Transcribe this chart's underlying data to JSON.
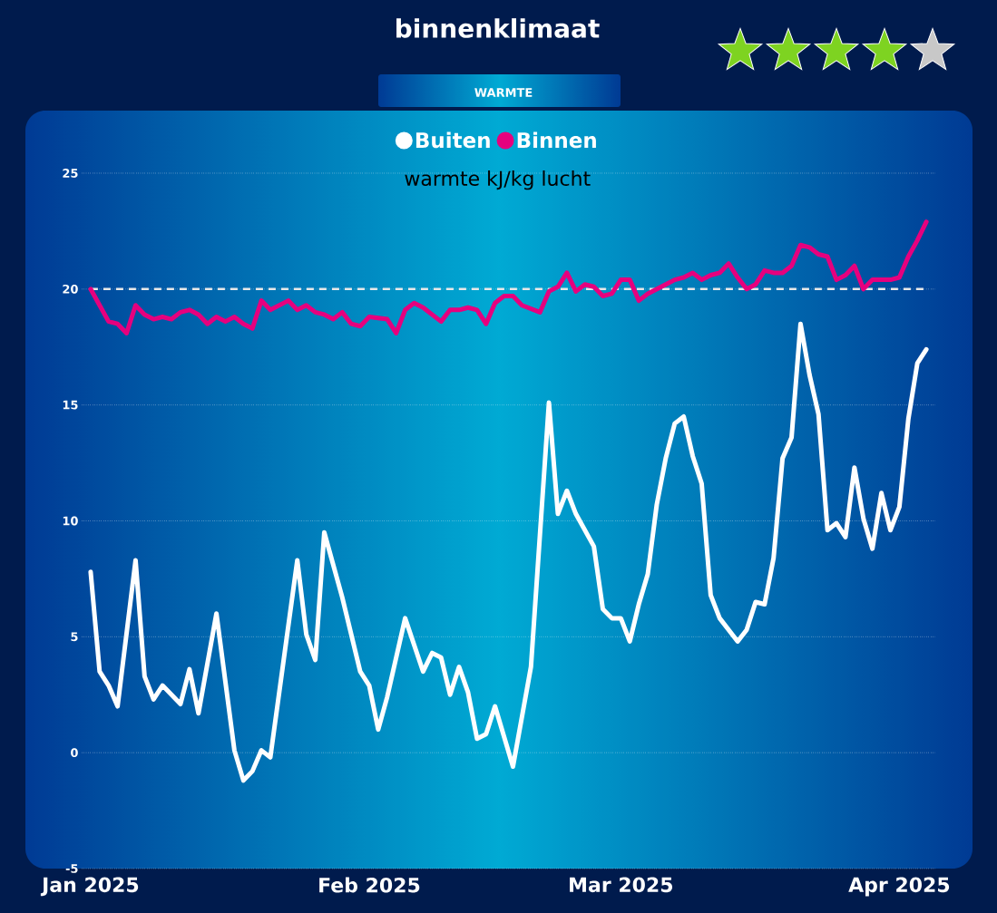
{
  "chart_data": {
    "type": "line",
    "title": "binnenklimaat",
    "subtitle": "WARMTE",
    "ylabel": "warmte kJ/kg lucht",
    "xlim": [
      "2024-12-31",
      "2025-04-05"
    ],
    "xticks": [
      {
        "value": "2025-01-01",
        "label": "Jan 2025"
      },
      {
        "value": "2025-02-01",
        "label": "Feb 2025"
      },
      {
        "value": "2025-03-01",
        "label": "Mar 2025"
      },
      {
        "value": "2025-04-01",
        "label": "Apr 2025"
      }
    ],
    "ylim": [
      -5,
      25
    ],
    "yticks": [
      -5,
      0,
      5,
      10,
      15,
      20,
      25
    ],
    "grid": "y",
    "legend": "top",
    "marker": "none",
    "line_style": "solid",
    "ref_lines": [
      {
        "axis": "y",
        "value": 20,
        "color": "#e8e8e8",
        "line_style": "dashed"
      }
    ],
    "series": [
      {
        "name": "Buiten",
        "color": "#ffffff",
        "x": [
          "2025-01-01",
          "2025-01-02",
          "2025-01-03",
          "2025-01-04",
          "2025-01-06",
          "2025-01-07",
          "2025-01-08",
          "2025-01-09",
          "2025-01-11",
          "2025-01-12",
          "2025-01-13",
          "2025-01-15",
          "2025-01-17",
          "2025-01-18",
          "2025-01-19",
          "2025-01-20",
          "2025-01-21",
          "2025-01-24",
          "2025-01-25",
          "2025-01-26",
          "2025-01-27",
          "2025-01-29",
          "2025-01-31",
          "2025-02-01",
          "2025-02-02",
          "2025-02-03",
          "2025-02-05",
          "2025-02-07",
          "2025-02-08",
          "2025-02-09",
          "2025-02-10",
          "2025-02-11",
          "2025-02-12",
          "2025-02-13",
          "2025-02-14",
          "2025-02-15",
          "2025-02-17",
          "2025-02-19",
          "2025-02-21",
          "2025-02-22",
          "2025-02-23",
          "2025-02-24",
          "2025-02-26",
          "2025-02-27",
          "2025-02-28",
          "2025-03-01",
          "2025-03-02",
          "2025-03-03",
          "2025-03-04",
          "2025-03-05",
          "2025-03-06",
          "2025-03-07",
          "2025-03-08",
          "2025-03-09",
          "2025-03-10",
          "2025-03-11",
          "2025-03-12",
          "2025-03-14",
          "2025-03-15",
          "2025-03-16",
          "2025-03-17",
          "2025-03-18",
          "2025-03-19",
          "2025-03-20",
          "2025-03-21",
          "2025-03-22",
          "2025-03-23",
          "2025-03-24",
          "2025-03-25",
          "2025-03-26",
          "2025-03-27",
          "2025-03-28",
          "2025-03-29",
          "2025-03-30",
          "2025-03-31",
          "2025-04-01",
          "2025-04-02",
          "2025-04-03",
          "2025-04-04"
        ],
        "values": [
          7.8,
          3.5,
          2.9,
          2.0,
          8.3,
          3.3,
          2.3,
          2.9,
          2.1,
          3.6,
          1.7,
          6.0,
          0.1,
          -1.2,
          -0.8,
          0.1,
          -0.2,
          8.3,
          5.1,
          4.0,
          9.5,
          6.7,
          3.5,
          2.9,
          1.0,
          2.4,
          5.8,
          3.5,
          4.3,
          4.1,
          2.5,
          3.7,
          2.6,
          0.6,
          0.8,
          2.0,
          -0.6,
          3.7,
          15.1,
          10.3,
          11.3,
          10.3,
          8.9,
          6.2,
          5.8,
          5.8,
          4.8,
          6.4,
          7.7,
          10.7,
          12.7,
          14.2,
          14.5,
          12.8,
          11.6,
          6.8,
          5.8,
          4.8,
          5.3,
          6.5,
          6.4,
          8.4,
          12.7,
          13.6,
          18.5,
          16.3,
          14.6,
          9.6,
          9.9,
          9.3,
          12.3,
          10.1,
          8.8,
          11.2,
          9.6,
          10.6,
          14.4,
          16.8,
          17.4
        ]
      },
      {
        "name": "Binnen",
        "color": "#e6007e",
        "x": [
          "2025-01-01",
          "2025-01-02",
          "2025-01-03",
          "2025-01-04",
          "2025-01-05",
          "2025-01-06",
          "2025-01-07",
          "2025-01-08",
          "2025-01-09",
          "2025-01-10",
          "2025-01-11",
          "2025-01-12",
          "2025-01-13",
          "2025-01-14",
          "2025-01-15",
          "2025-01-16",
          "2025-01-17",
          "2025-01-18",
          "2025-01-19",
          "2025-01-20",
          "2025-01-21",
          "2025-01-23",
          "2025-01-24",
          "2025-01-25",
          "2025-01-26",
          "2025-01-27",
          "2025-01-28",
          "2025-01-29",
          "2025-01-30",
          "2025-01-31",
          "2025-02-01",
          "2025-02-03",
          "2025-02-04",
          "2025-02-05",
          "2025-02-06",
          "2025-02-07",
          "2025-02-09",
          "2025-02-10",
          "2025-02-11",
          "2025-02-12",
          "2025-02-13",
          "2025-02-14",
          "2025-02-15",
          "2025-02-16",
          "2025-02-17",
          "2025-02-18",
          "2025-02-20",
          "2025-02-21",
          "2025-02-22",
          "2025-02-23",
          "2025-02-24",
          "2025-02-25",
          "2025-02-26",
          "2025-02-27",
          "2025-02-28",
          "2025-03-01",
          "2025-03-02",
          "2025-03-03",
          "2025-03-04",
          "2025-03-06",
          "2025-03-07",
          "2025-03-08",
          "2025-03-09",
          "2025-03-10",
          "2025-03-11",
          "2025-03-12",
          "2025-03-13",
          "2025-03-14",
          "2025-03-15",
          "2025-03-16",
          "2025-03-17",
          "2025-03-18",
          "2025-03-19",
          "2025-03-20",
          "2025-03-21",
          "2025-03-22",
          "2025-03-23",
          "2025-03-24",
          "2025-03-25",
          "2025-03-26",
          "2025-03-27",
          "2025-03-28",
          "2025-03-29",
          "2025-03-31",
          "2025-04-01",
          "2025-04-02",
          "2025-04-03",
          "2025-04-04"
        ],
        "values": [
          20.0,
          19.3,
          18.6,
          18.5,
          18.1,
          19.3,
          18.9,
          18.7,
          18.8,
          18.7,
          19.0,
          19.1,
          18.9,
          18.5,
          18.8,
          18.6,
          18.8,
          18.5,
          18.3,
          19.5,
          19.1,
          19.5,
          19.1,
          19.3,
          19.0,
          18.9,
          18.7,
          19.0,
          18.5,
          18.4,
          18.8,
          18.7,
          18.1,
          19.1,
          19.4,
          19.2,
          18.6,
          19.1,
          19.1,
          19.2,
          19.1,
          18.5,
          19.4,
          19.7,
          19.7,
          19.3,
          19.0,
          19.9,
          20.1,
          20.7,
          19.9,
          20.2,
          20.1,
          19.7,
          19.8,
          20.4,
          20.4,
          19.5,
          19.8,
          20.2,
          20.4,
          20.5,
          20.7,
          20.4,
          20.6,
          20.7,
          21.1,
          20.5,
          20.0,
          20.2,
          20.8,
          20.7,
          20.7,
          21.0,
          21.9,
          21.8,
          21.5,
          21.4,
          20.4,
          20.6,
          21.0,
          20.0,
          20.4,
          20.4,
          20.5,
          21.4,
          22.1,
          22.9
        ]
      }
    ]
  }
}
